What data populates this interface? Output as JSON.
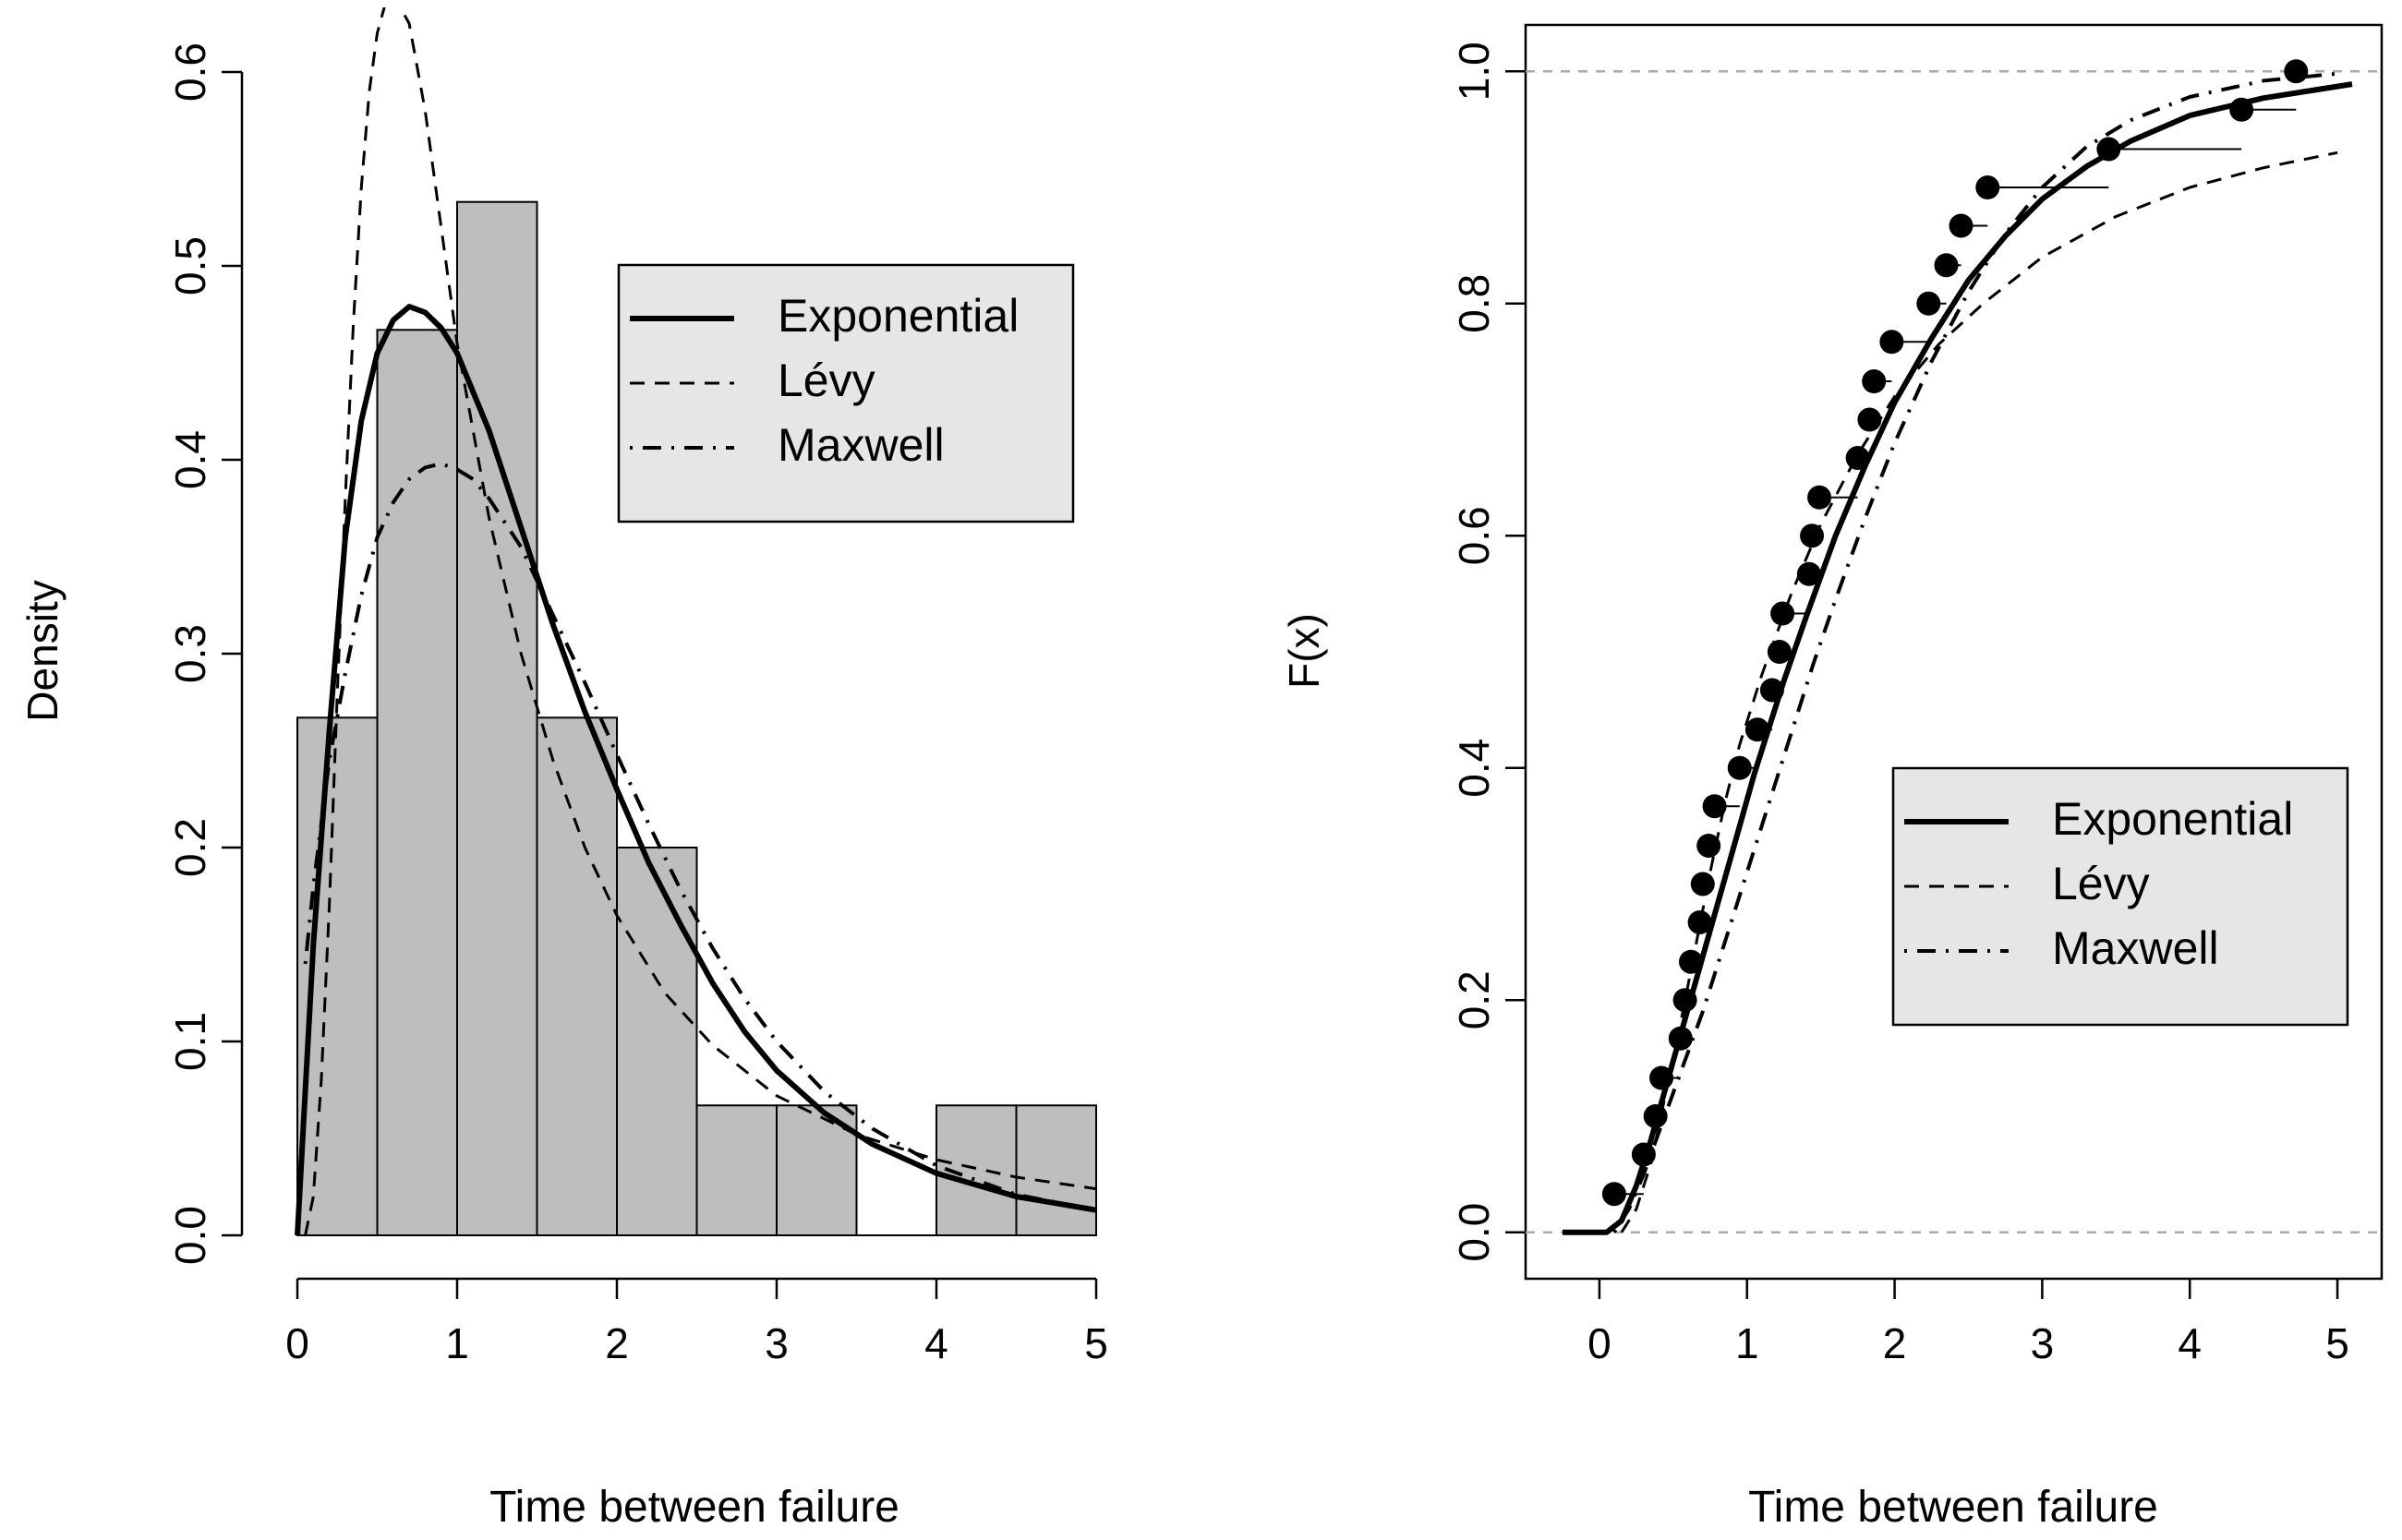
{
  "chart_data": [
    {
      "type": "bar",
      "subtype": "histogram-with-density-curves",
      "xlabel": "Time between failure",
      "ylabel": "Density",
      "xlim": [
        0,
        5
      ],
      "ylim": [
        0,
        0.6
      ],
      "xticks": [
        "0",
        "1",
        "2",
        "3",
        "4",
        "5"
      ],
      "yticks": [
        "0.0",
        "0.1",
        "0.2",
        "0.3",
        "0.4",
        "0.5",
        "0.6"
      ],
      "bins": [
        {
          "from": 0.0,
          "to": 0.5,
          "density": 0.267
        },
        {
          "from": 0.5,
          "to": 1.0,
          "density": 0.467
        },
        {
          "from": 1.0,
          "to": 1.5,
          "density": 0.533
        },
        {
          "from": 1.5,
          "to": 2.0,
          "density": 0.267
        },
        {
          "from": 2.0,
          "to": 2.5,
          "density": 0.2
        },
        {
          "from": 2.5,
          "to": 3.0,
          "density": 0.067
        },
        {
          "from": 3.0,
          "to": 3.5,
          "density": 0.067
        },
        {
          "from": 3.5,
          "to": 4.0,
          "density": 0.0
        },
        {
          "from": 4.0,
          "to": 4.5,
          "density": 0.067
        },
        {
          "from": 4.5,
          "to": 5.0,
          "density": 0.067
        }
      ],
      "bar_color": "#bebebe",
      "series": [
        {
          "name": "Exponential",
          "style": "solid",
          "x": [
            0.0,
            0.1,
            0.2,
            0.3,
            0.4,
            0.5,
            0.6,
            0.7,
            0.8,
            0.9,
            1.0,
            1.2,
            1.4,
            1.6,
            1.8,
            2.0,
            2.2,
            2.4,
            2.6,
            2.8,
            3.0,
            3.3,
            3.6,
            4.0,
            4.5,
            5.0
          ],
          "y": [
            0.0,
            0.15,
            0.26,
            0.36,
            0.42,
            0.455,
            0.472,
            0.479,
            0.476,
            0.468,
            0.455,
            0.415,
            0.365,
            0.315,
            0.27,
            0.23,
            0.192,
            0.16,
            0.13,
            0.105,
            0.085,
            0.063,
            0.047,
            0.032,
            0.02,
            0.013
          ]
        },
        {
          "name": "Lévy",
          "style": "dashed",
          "x": [
            0.05,
            0.1,
            0.15,
            0.2,
            0.25,
            0.3,
            0.35,
            0.4,
            0.45,
            0.5,
            0.55,
            0.6,
            0.7,
            0.8,
            0.9,
            1.0,
            1.2,
            1.4,
            1.6,
            1.8,
            2.0,
            2.3,
            2.6,
            3.0,
            3.5,
            4.0,
            4.5,
            5.0
          ],
          "y": [
            0.0,
            0.02,
            0.08,
            0.17,
            0.28,
            0.38,
            0.47,
            0.54,
            0.59,
            0.62,
            0.635,
            0.64,
            0.625,
            0.58,
            0.52,
            0.46,
            0.37,
            0.3,
            0.245,
            0.2,
            0.165,
            0.125,
            0.098,
            0.072,
            0.052,
            0.039,
            0.03,
            0.024
          ]
        },
        {
          "name": "Maxwell",
          "style": "dotdash",
          "x": [
            0.05,
            0.1,
            0.2,
            0.3,
            0.4,
            0.5,
            0.6,
            0.7,
            0.8,
            0.9,
            1.0,
            1.1,
            1.2,
            1.4,
            1.6,
            1.8,
            2.0,
            2.2,
            2.4,
            2.6,
            2.8,
            3.0,
            3.3,
            3.6,
            4.0,
            4.5,
            5.0
          ],
          "y": [
            0.14,
            0.18,
            0.245,
            0.29,
            0.33,
            0.36,
            0.378,
            0.39,
            0.396,
            0.398,
            0.395,
            0.39,
            0.38,
            0.355,
            0.32,
            0.285,
            0.248,
            0.212,
            0.178,
            0.148,
            0.122,
            0.1,
            0.074,
            0.055,
            0.036,
            0.021,
            0.013
          ]
        }
      ],
      "legend": {
        "position": "top-right",
        "entries": [
          "Exponential",
          "Lévy",
          "Maxwell"
        ],
        "background": "#e6e6e6"
      }
    },
    {
      "type": "line",
      "subtype": "ecdf-with-fitted-cdfs",
      "xlabel": "Time between failure",
      "ylabel": "F(x)",
      "xlim": [
        -0.5,
        5.3
      ],
      "ylim": [
        -0.04,
        1.04
      ],
      "xticks": [
        "0",
        "1",
        "2",
        "3",
        "4",
        "5"
      ],
      "yticks": [
        "0.0",
        "0.2",
        "0.4",
        "0.6",
        "0.8",
        "1.0"
      ],
      "reference_lines": [
        0.0,
        1.0
      ],
      "ecdf_points": {
        "x": [
          0.1,
          0.3,
          0.38,
          0.42,
          0.55,
          0.58,
          0.62,
          0.68,
          0.7,
          0.74,
          0.78,
          0.95,
          1.07,
          1.17,
          1.22,
          1.24,
          1.42,
          1.44,
          1.49,
          1.75,
          1.83,
          1.86,
          1.98,
          2.23,
          2.35,
          2.45,
          2.63,
          3.45,
          4.35,
          4.72
        ],
        "y": [
          0.033,
          0.067,
          0.1,
          0.133,
          0.167,
          0.2,
          0.233,
          0.267,
          0.3,
          0.333,
          0.367,
          0.4,
          0.433,
          0.467,
          0.5,
          0.533,
          0.567,
          0.6,
          0.633,
          0.667,
          0.7,
          0.733,
          0.767,
          0.8,
          0.833,
          0.867,
          0.9,
          0.933,
          0.967,
          1.0
        ]
      },
      "series": [
        {
          "name": "Exponential",
          "style": "solid",
          "x": [
            -0.25,
            0.05,
            0.15,
            0.25,
            0.35,
            0.45,
            0.55,
            0.65,
            0.75,
            0.85,
            0.95,
            1.05,
            1.15,
            1.25,
            1.4,
            1.6,
            1.8,
            2.0,
            2.25,
            2.5,
            2.75,
            3.0,
            3.3,
            3.6,
            4.0,
            4.5,
            5.0,
            5.1
          ],
          "y": [
            0.0,
            0.0,
            0.01,
            0.04,
            0.08,
            0.125,
            0.17,
            0.215,
            0.26,
            0.305,
            0.35,
            0.395,
            0.435,
            0.475,
            0.53,
            0.6,
            0.66,
            0.715,
            0.77,
            0.82,
            0.858,
            0.89,
            0.918,
            0.94,
            0.962,
            0.977,
            0.987,
            0.989
          ]
        },
        {
          "name": "Lévy",
          "style": "dashed",
          "x": [
            0.15,
            0.25,
            0.35,
            0.45,
            0.55,
            0.65,
            0.75,
            0.85,
            0.95,
            1.1,
            1.3,
            1.5,
            1.75,
            2.0,
            2.3,
            2.6,
            3.0,
            3.5,
            4.0,
            4.5,
            5.0
          ],
          "y": [
            0.0,
            0.02,
            0.06,
            0.12,
            0.18,
            0.245,
            0.31,
            0.37,
            0.42,
            0.48,
            0.55,
            0.61,
            0.67,
            0.72,
            0.765,
            0.8,
            0.84,
            0.875,
            0.9,
            0.917,
            0.93
          ]
        },
        {
          "name": "Maxwell",
          "style": "dotdash",
          "x": [
            0.1,
            0.2,
            0.3,
            0.4,
            0.5,
            0.6,
            0.7,
            0.8,
            0.9,
            1.0,
            1.1,
            1.2,
            1.3,
            1.45,
            1.6,
            1.8,
            2.0,
            2.25,
            2.5,
            2.75,
            3.0,
            3.3,
            3.6,
            4.0,
            4.5,
            5.0
          ],
          "y": [
            0.0,
            0.02,
            0.05,
            0.085,
            0.12,
            0.155,
            0.19,
            0.23,
            0.27,
            0.31,
            0.35,
            0.39,
            0.43,
            0.49,
            0.545,
            0.615,
            0.68,
            0.75,
            0.81,
            0.86,
            0.9,
            0.935,
            0.958,
            0.978,
            0.992,
            0.998
          ]
        }
      ],
      "legend": {
        "position": "center-right",
        "entries": [
          "Exponential",
          "Lévy",
          "Maxwell"
        ],
        "background": "#e6e6e6"
      }
    }
  ]
}
